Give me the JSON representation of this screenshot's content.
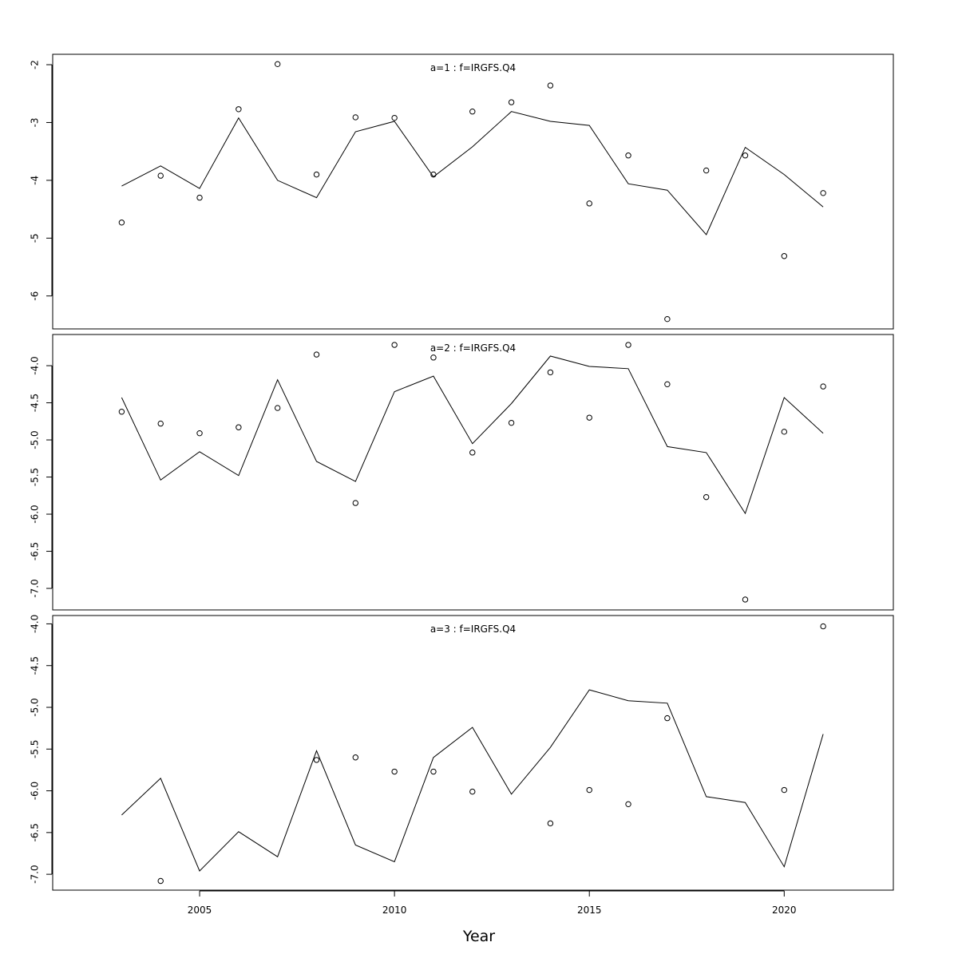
{
  "chart_data": [
    {
      "type": "line+scatter",
      "title": "a=1 : f=IRGFS.Q4",
      "x": [
        2003,
        2004,
        2005,
        2006,
        2007,
        2008,
        2009,
        2010,
        2011,
        2012,
        2013,
        2014,
        2015,
        2016,
        2017,
        2018,
        2019,
        2020,
        2021
      ],
      "observed": [
        -4.73,
        -3.92,
        -4.3,
        -2.77,
        -1.99,
        -3.9,
        -2.91,
        -2.92,
        -3.9,
        -2.81,
        -2.65,
        -2.36,
        -4.4,
        -3.57,
        -6.4,
        -3.83,
        -3.57,
        -5.31,
        -4.22
      ],
      "fitted": [
        -4.1,
        -3.75,
        -4.14,
        -2.92,
        -4.0,
        -4.3,
        -3.16,
        -2.98,
        -3.94,
        -3.42,
        -2.81,
        -2.98,
        -3.05,
        -4.06,
        -4.17,
        -4.94,
        -3.43,
        -3.9,
        -4.46
      ],
      "yticks": [
        -2,
        -3,
        -4,
        -5,
        -6
      ],
      "ytick_labels": [
        "-2",
        "-3",
        "-4",
        "-5",
        "-6"
      ],
      "ylim": [
        -6.57,
        -1.82
      ]
    },
    {
      "type": "line+scatter",
      "title": "a=2 : f=IRGFS.Q4",
      "x": [
        2003,
        2004,
        2005,
        2006,
        2007,
        2008,
        2009,
        2010,
        2011,
        2012,
        2013,
        2014,
        2015,
        2016,
        2017,
        2018,
        2019,
        2020,
        2021
      ],
      "observed": [
        -4.62,
        -4.78,
        -4.91,
        -4.83,
        -4.57,
        -3.85,
        -5.85,
        -3.72,
        -3.89,
        -5.17,
        -4.77,
        -4.09,
        -4.7,
        -3.72,
        -4.25,
        -5.77,
        -7.15,
        -4.89,
        -4.28
      ],
      "fitted": [
        -4.43,
        -5.54,
        -5.16,
        -5.48,
        -4.19,
        -5.29,
        -5.56,
        -4.35,
        -4.14,
        -5.05,
        -4.51,
        -3.87,
        -4.01,
        -4.04,
        -5.09,
        -5.17,
        -5.99,
        -4.43,
        -4.91
      ],
      "yticks": [
        -4.0,
        -4.5,
        -5.0,
        -5.5,
        -6.0,
        -6.5,
        -7.0
      ],
      "ytick_labels": [
        "-4.0",
        "-4.5",
        "-5.0",
        "-5.5",
        "-6.0",
        "-6.5",
        "-7.0"
      ],
      "ylim": [
        -7.29,
        -3.58
      ]
    },
    {
      "type": "line+scatter",
      "title": "a=3 : f=IRGFS.Q4",
      "x": [
        2003,
        2004,
        2005,
        2006,
        2007,
        2008,
        2009,
        2010,
        2011,
        2012,
        2013,
        2014,
        2015,
        2016,
        2017,
        2018,
        2019,
        2020,
        2021
      ],
      "observed": [
        null,
        -7.08,
        null,
        null,
        null,
        -5.63,
        -5.6,
        -5.77,
        -5.77,
        -6.01,
        null,
        -6.39,
        -5.99,
        -6.16,
        -5.13,
        null,
        null,
        -5.99,
        -4.03
      ],
      "fitted": [
        -6.29,
        -5.85,
        -6.96,
        -6.49,
        -6.79,
        -5.52,
        -6.65,
        -6.85,
        -5.6,
        -5.24,
        -6.04,
        -5.48,
        -4.79,
        -4.92,
        -4.95,
        -6.07,
        -6.14,
        -6.91,
        -5.32
      ],
      "yticks": [
        -4.0,
        -4.5,
        -5.0,
        -5.5,
        -6.0,
        -6.5,
        -7.0
      ],
      "ytick_labels": [
        "-4.0",
        "-4.5",
        "-5.0",
        "-5.5",
        "-6.0",
        "-6.5",
        "-7.0"
      ],
      "ylim": [
        -7.19,
        -3.9
      ]
    }
  ],
  "x_axis": {
    "label": "Year",
    "xlim": [
      2001.23,
      2022.8
    ],
    "ticks": [
      2005,
      2010,
      2015,
      2020
    ],
    "tick_labels": [
      "2005",
      "2010",
      "2015",
      "2020"
    ]
  },
  "colors": {
    "line": "#000000",
    "points": "#000000",
    "panel_title": "#808080"
  }
}
